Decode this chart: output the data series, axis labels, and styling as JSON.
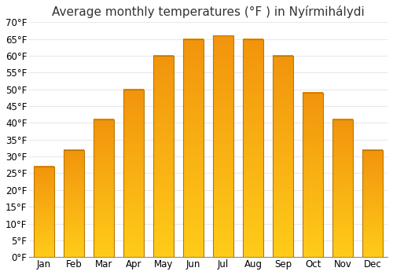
{
  "title": "Average monthly temperatures (°F ) in Nyírmihálydi",
  "months": [
    "Jan",
    "Feb",
    "Mar",
    "Apr",
    "May",
    "Jun",
    "Jul",
    "Aug",
    "Sep",
    "Oct",
    "Nov",
    "Dec"
  ],
  "values": [
    27,
    32,
    41,
    50,
    60,
    65,
    66,
    65,
    60,
    49,
    41,
    32
  ],
  "bar_color_main": "#FFAA00",
  "bar_color_bright": "#FFD040",
  "bar_color_top": "#E08800",
  "bar_edge_color": "#B87800",
  "background_color": "#FFFFFF",
  "grid_color": "#E8E8F0",
  "ylim": [
    0,
    70
  ],
  "yticks": [
    0,
    5,
    10,
    15,
    20,
    25,
    30,
    35,
    40,
    45,
    50,
    55,
    60,
    65,
    70
  ],
  "ytick_labels": [
    "0°F",
    "5°F",
    "10°F",
    "15°F",
    "20°F",
    "25°F",
    "30°F",
    "35°F",
    "40°F",
    "45°F",
    "50°F",
    "55°F",
    "60°F",
    "65°F",
    "70°F"
  ],
  "title_fontsize": 11,
  "tick_fontsize": 8.5
}
